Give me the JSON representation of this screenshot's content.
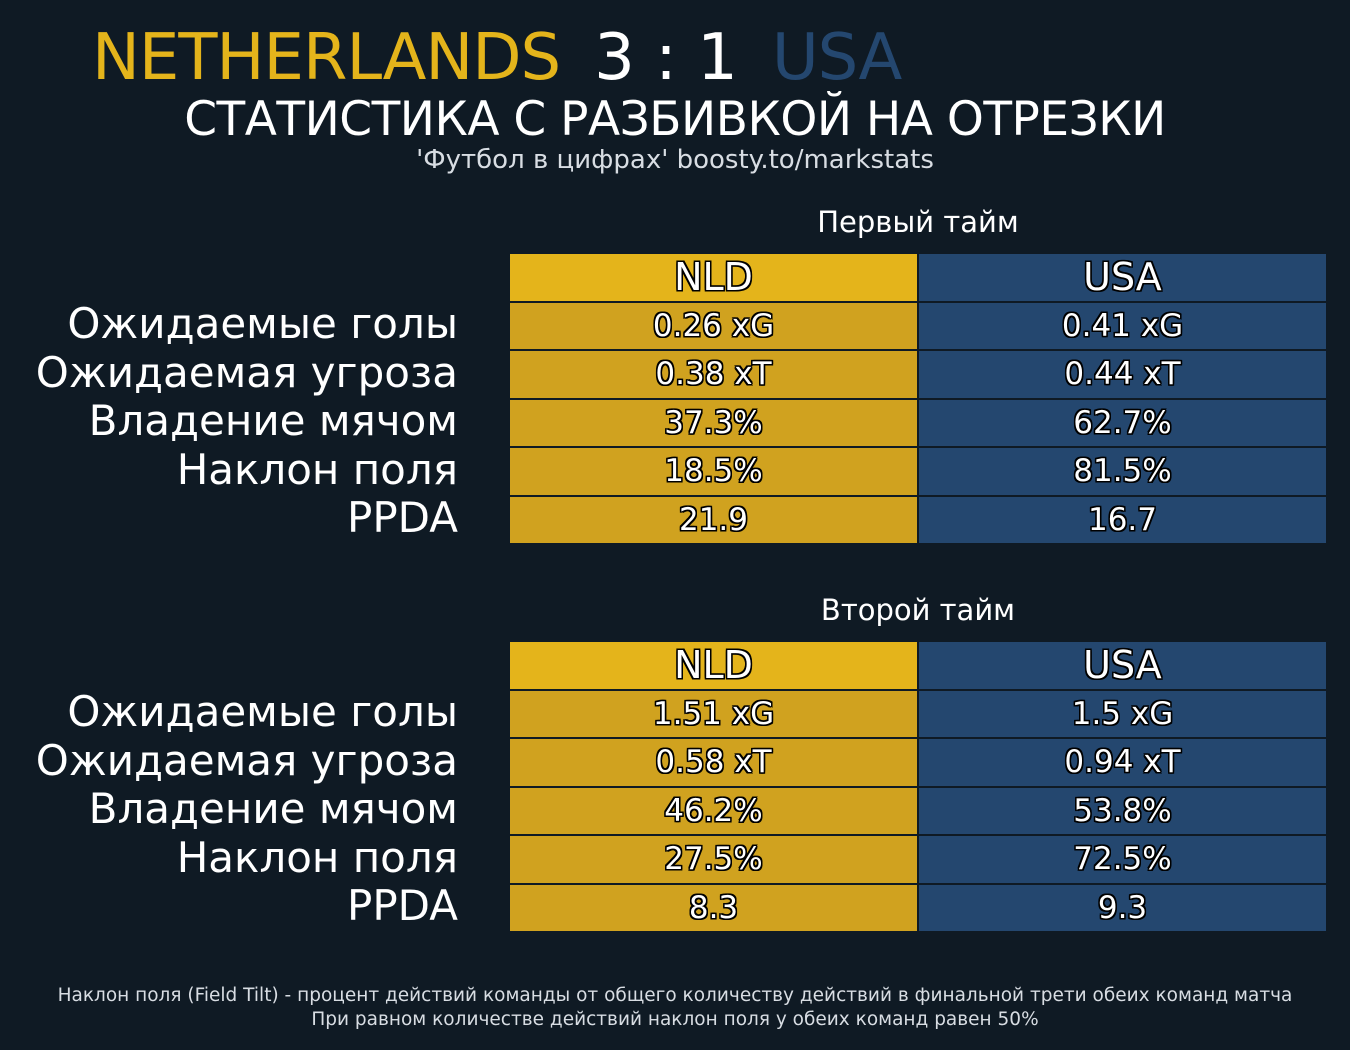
{
  "header": {
    "home_team": "NETHERLANDS",
    "score": "3 : 1",
    "away_team": "USA",
    "subtitle": "СТАТИСТИКА С РАЗБИВКОЙ НА ОТРЕЗКИ",
    "credit": "'Футбол в цифрах' boosty.to/markstats"
  },
  "colors": {
    "background": "#0f1a24",
    "home": "#e4b41b",
    "home_cell": "#d0a21f",
    "away": "#24476f"
  },
  "chart_data": [
    {
      "type": "table",
      "title": "Первый тайм",
      "columns": [
        "NLD",
        "USA"
      ],
      "rows": [
        {
          "label": "Ожидаемые голы",
          "values": [
            "0.26 xG",
            "0.41 xG"
          ]
        },
        {
          "label": "Ожидаемая угроза",
          "values": [
            "0.38 xT",
            "0.44 xT"
          ]
        },
        {
          "label": "Владение мячом",
          "values": [
            "37.3%",
            "62.7%"
          ]
        },
        {
          "label": "Наклон поля",
          "values": [
            "18.5%",
            "81.5%"
          ]
        },
        {
          "label": "PPDA",
          "values": [
            "21.9",
            "16.7"
          ]
        }
      ]
    },
    {
      "type": "table",
      "title": "Второй тайм",
      "columns": [
        "NLD",
        "USA"
      ],
      "rows": [
        {
          "label": "Ожидаемые голы",
          "values": [
            "1.51 xG",
            "1.5 xG"
          ]
        },
        {
          "label": "Ожидаемая угроза",
          "values": [
            "0.58 xT",
            "0.94 xT"
          ]
        },
        {
          "label": "Владение мячом",
          "values": [
            "46.2%",
            "53.8%"
          ]
        },
        {
          "label": "Наклон поля",
          "values": [
            "27.5%",
            "72.5%"
          ]
        },
        {
          "label": "PPDA",
          "values": [
            "8.3",
            "9.3"
          ]
        }
      ]
    }
  ],
  "footnote": {
    "line1": "Наклон поля (Field Tilt) - процент действий команды от общего количеству действий в финальной трети обеих команд матча",
    "line2": "При равном количестве действий наклон поля у обеих команд равен 50%"
  }
}
